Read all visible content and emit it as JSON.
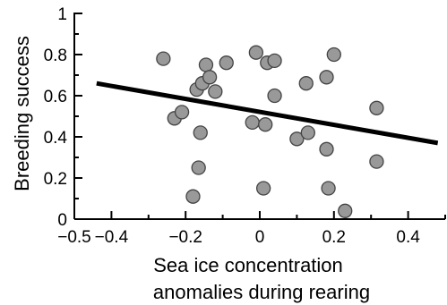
{
  "chart_data": {
    "type": "scatter",
    "title": "",
    "xlabel_lines": [
      "Sea ice concentration",
      "anomalies during rearing"
    ],
    "ylabel": "Breeding success",
    "xlim": [
      -0.5,
      0.5
    ],
    "ylim": [
      0,
      1
    ],
    "x_ticks": [
      -0.5,
      -0.4,
      -0.2,
      0,
      0.2,
      0.4
    ],
    "x_tick_labels": [
      "−0.5",
      "−0.4",
      "−0.2",
      "0",
      "0.2",
      "0.4"
    ],
    "x_minor_ticks": [
      -0.3,
      -0.1,
      0.1,
      0.3,
      0.5
    ],
    "y_ticks": [
      0,
      0.2,
      0.4,
      0.6,
      0.8,
      1
    ],
    "y_tick_labels": [
      "0",
      "0.2",
      "0.4",
      "0.6",
      "0.8",
      "1"
    ],
    "y_minor_ticks": [
      0.1,
      0.3,
      0.5,
      0.7,
      0.9
    ],
    "grid": false,
    "legend": "none",
    "marker_fill": "#999999",
    "marker_stroke": "#444444",
    "line_color": "#000000",
    "points": [
      {
        "x": -0.26,
        "y": 0.78
      },
      {
        "x": -0.23,
        "y": 0.49
      },
      {
        "x": -0.21,
        "y": 0.52
      },
      {
        "x": -0.18,
        "y": 0.11
      },
      {
        "x": -0.17,
        "y": 0.63
      },
      {
        "x": -0.165,
        "y": 0.25
      },
      {
        "x": -0.16,
        "y": 0.42
      },
      {
        "x": -0.155,
        "y": 0.66
      },
      {
        "x": -0.145,
        "y": 0.75
      },
      {
        "x": -0.135,
        "y": 0.69
      },
      {
        "x": -0.12,
        "y": 0.62
      },
      {
        "x": -0.09,
        "y": 0.76
      },
      {
        "x": -0.02,
        "y": 0.47
      },
      {
        "x": -0.01,
        "y": 0.81
      },
      {
        "x": 0.01,
        "y": 0.15
      },
      {
        "x": 0.015,
        "y": 0.46
      },
      {
        "x": 0.02,
        "y": 0.76
      },
      {
        "x": 0.04,
        "y": 0.77
      },
      {
        "x": 0.04,
        "y": 0.6
      },
      {
        "x": 0.1,
        "y": 0.39
      },
      {
        "x": 0.125,
        "y": 0.66
      },
      {
        "x": 0.13,
        "y": 0.42
      },
      {
        "x": 0.18,
        "y": 0.69
      },
      {
        "x": 0.18,
        "y": 0.34
      },
      {
        "x": 0.185,
        "y": 0.15
      },
      {
        "x": 0.2,
        "y": 0.8
      },
      {
        "x": 0.23,
        "y": 0.04
      },
      {
        "x": 0.315,
        "y": 0.54
      },
      {
        "x": 0.315,
        "y": 0.28
      }
    ],
    "trend_line": {
      "x": [
        -0.44,
        0.48
      ],
      "y": [
        0.66,
        0.37
      ]
    }
  }
}
